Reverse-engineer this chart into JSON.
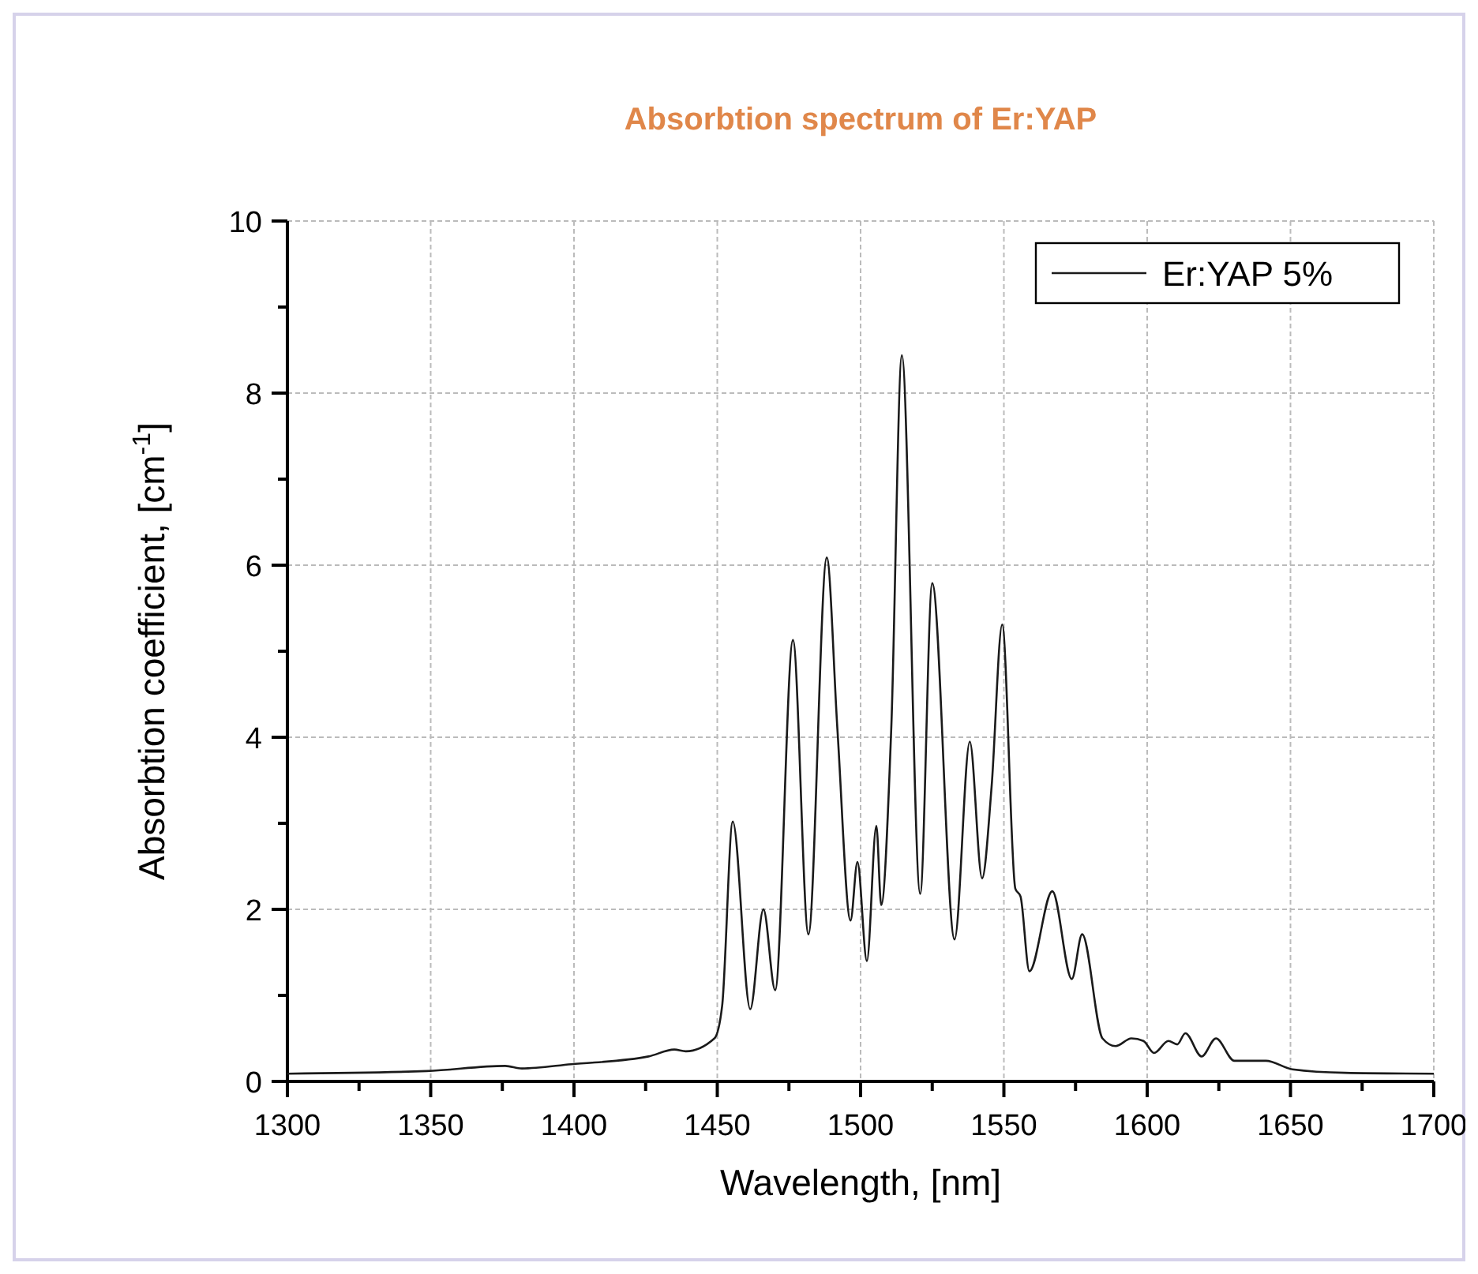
{
  "chart_data": {
    "type": "line",
    "title": "Absorbtion spectrum of Er:YAP",
    "xlabel": "Wavelength, [nm]",
    "ylabel": "Absorbtion coefficient, [cm$^{-1}$]",
    "xlim": [
      1300,
      1700
    ],
    "ylim": [
      0,
      10
    ],
    "xticks": [
      1300,
      {
        "value": 1325,
        "label": null
      },
      1350,
      {
        "value": 1375,
        "label": null
      },
      1400,
      {
        "value": 1425,
        "label": null
      },
      1450,
      {
        "value": 1475,
        "label": null
      },
      1500,
      {
        "value": 1525,
        "label": null
      },
      1550,
      {
        "value": 1575,
        "label": null
      },
      1600,
      {
        "value": 1625,
        "label": null
      },
      1650,
      {
        "value": 1675,
        "label": null
      },
      1700
    ],
    "yticks": [
      0,
      {
        "value": 1,
        "label": null
      },
      2,
      {
        "value": 3,
        "label": null
      },
      4,
      {
        "value": 5,
        "label": null
      },
      6,
      {
        "value": 7,
        "label": null
      },
      8,
      {
        "value": 9,
        "label": null
      },
      10
    ],
    "grid": true,
    "legend": "top right",
    "line_style": "solid",
    "marker": "none",
    "series": [
      {
        "name": "Er:YAP 5%",
        "color": "#1a1a1a",
        "x": [
          1300,
          1348.6,
          1376,
          1381.8,
          1399,
          1426,
          1435,
          1439,
          1449,
          1451.7,
          1455.4,
          1461.5,
          1466.1,
          1470.2,
          1476.4,
          1481.8,
          1488.2,
          1491.9,
          1496.5,
          1498.9,
          1502.2,
          1505.5,
          1507.2,
          1510.7,
          1514.4,
          1520.8,
          1525,
          1532.8,
          1538.1,
          1542.4,
          1545.7,
          1549.4,
          1554,
          1555.8,
          1558.9,
          1566.9,
          1573.7,
          1577.3,
          1584.4,
          1589,
          1594.5,
          1598.7,
          1602.4,
          1607.4,
          1610.5,
          1613.3,
          1619,
          1624,
          1630.4,
          1641.4,
          1650.7,
          1669,
          1700
        ],
        "values": [
          0.09,
          0.12,
          0.18,
          0.15,
          0.2,
          0.29,
          0.37,
          0.35,
          0.5,
          0.88,
          3.02,
          0.84,
          2.0,
          1.06,
          5.13,
          1.71,
          6.09,
          4.1,
          1.87,
          2.55,
          1.4,
          2.97,
          2.05,
          4.1,
          8.44,
          2.18,
          5.79,
          1.65,
          3.95,
          2.36,
          3.42,
          5.31,
          2.24,
          2.15,
          1.28,
          2.21,
          1.19,
          1.71,
          0.5,
          0.41,
          0.5,
          0.47,
          0.33,
          0.47,
          0.43,
          0.56,
          0.29,
          0.5,
          0.24,
          0.24,
          0.14,
          0.1,
          0.09
        ]
      }
    ]
  }
}
